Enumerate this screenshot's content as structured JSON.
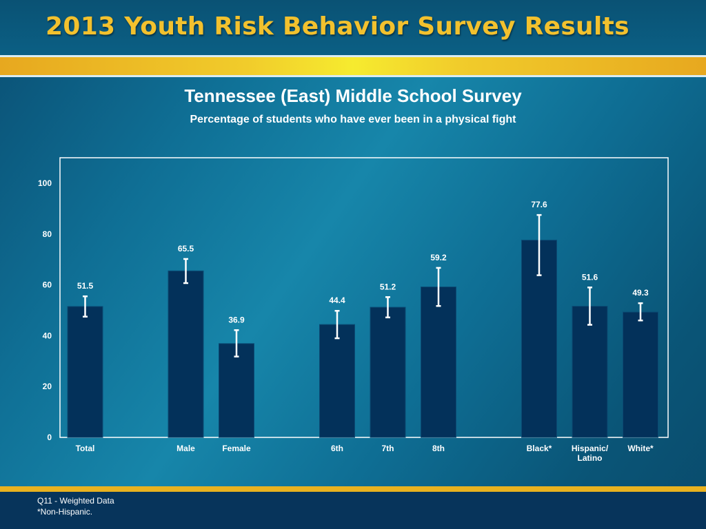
{
  "header": {
    "title": "2013 Youth Risk Behavior Survey Results"
  },
  "colors": {
    "bar": "#03315a",
    "gold": "#f2c12e",
    "label": "#ffffff"
  },
  "chart_data": {
    "type": "bar",
    "title": "Tennessee (East) Middle School Survey",
    "subtitle": "Percentage of students who have ever been in a physical fight",
    "xlabel": "",
    "ylabel": "",
    "ylim": [
      0,
      110
    ],
    "yticks": [
      0,
      20,
      40,
      60,
      80,
      100
    ],
    "grid": false,
    "categories": [
      "Total",
      "Male",
      "Female",
      "6th",
      "7th",
      "8th",
      "Black*",
      "Hispanic/ Latino",
      "White*"
    ],
    "values": [
      51.5,
      65.5,
      36.9,
      44.4,
      51.2,
      59.2,
      77.6,
      51.6,
      49.3
    ],
    "value_labels": [
      "51.5",
      "65.5",
      "36.9",
      "44.4",
      "51.2",
      "59.2",
      "77.6",
      "51.6",
      "49.3"
    ],
    "error_bars": [
      [
        47.5,
        55.5
      ],
      [
        60.7,
        70.2
      ],
      [
        31.8,
        42.2
      ],
      [
        39.0,
        49.8
      ],
      [
        47.2,
        55.2
      ],
      [
        51.7,
        66.7
      ],
      [
        63.8,
        87.5
      ],
      [
        44.3,
        59.0
      ],
      [
        46.0,
        52.8
      ]
    ],
    "groups": [
      [
        0
      ],
      [
        1,
        2
      ],
      [
        3,
        4,
        5
      ],
      [
        6,
        7,
        8
      ]
    ]
  },
  "footnotes": {
    "line1": "Q11 - Weighted Data",
    "line2": "*Non-Hispanic."
  }
}
